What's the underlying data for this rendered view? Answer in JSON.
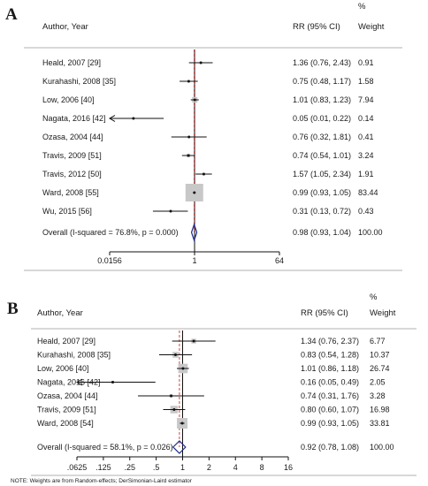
{
  "panels": [
    {
      "letter": "A",
      "header": {
        "author": "Author, Year",
        "rr": "RR (95% CI)",
        "pct": "%",
        "weight": "Weight"
      },
      "rows": [
        {
          "label": "Heald, 2007 [29]",
          "rr": 1.36,
          "lo": 0.76,
          "hi": 2.43,
          "rr_text": "1.36 (0.76, 2.43)",
          "weight": 0.91,
          "weight_text": "0.91",
          "arrow_left": false
        },
        {
          "label": "Kurahashi, 2008 [35]",
          "rr": 0.75,
          "lo": 0.48,
          "hi": 1.17,
          "rr_text": "0.75 (0.48, 1.17)",
          "weight": 1.58,
          "weight_text": "1.58",
          "arrow_left": false
        },
        {
          "label": "Low, 2006 [40]",
          "rr": 1.01,
          "lo": 0.83,
          "hi": 1.23,
          "rr_text": "1.01 (0.83, 1.23)",
          "weight": 7.94,
          "weight_text": "7.94",
          "arrow_left": false
        },
        {
          "label": "Nagata, 2016 [42]",
          "rr": 0.05,
          "lo": 0.01,
          "hi": 0.22,
          "rr_text": "0.05 (0.01, 0.22)",
          "weight": 0.14,
          "weight_text": "0.14",
          "arrow_left": true
        },
        {
          "label": "Ozasa, 2004 [44]",
          "rr": 0.76,
          "lo": 0.32,
          "hi": 1.81,
          "rr_text": "0.76 (0.32, 1.81)",
          "weight": 0.41,
          "weight_text": "0.41",
          "arrow_left": false
        },
        {
          "label": "Travis, 2009 [51]",
          "rr": 0.74,
          "lo": 0.54,
          "hi": 1.01,
          "rr_text": "0.74 (0.54, 1.01)",
          "weight": 3.24,
          "weight_text": "3.24",
          "arrow_left": false
        },
        {
          "label": "Travis, 2012 [50]",
          "rr": 1.57,
          "lo": 1.05,
          "hi": 2.34,
          "rr_text": "1.57 (1.05, 2.34)",
          "weight": 1.91,
          "weight_text": "1.91",
          "arrow_left": false
        },
        {
          "label": "Ward, 2008 [55]",
          "rr": 0.99,
          "lo": 0.93,
          "hi": 1.05,
          "rr_text": "0.99 (0.93, 1.05)",
          "weight": 83.44,
          "weight_text": "83.44",
          "arrow_left": false
        },
        {
          "label": "Wu, 2015 [56]",
          "rr": 0.31,
          "lo": 0.13,
          "hi": 0.72,
          "rr_text": "0.31 (0.13, 0.72)",
          "weight": 0.43,
          "weight_text": "0.43",
          "arrow_left": false
        }
      ],
      "overall": {
        "label": "Overall  (I-squared = 76.8%, p = 0.000)",
        "rr": 0.98,
        "lo": 0.93,
        "hi": 1.04,
        "rr_text": "0.98 (0.93, 1.04)",
        "weight_text": "100.00"
      },
      "axis": {
        "min": 0.0156,
        "max": 64,
        "ticks": [
          {
            "value": 0.0156,
            "label": "0.0156"
          },
          {
            "value": 1,
            "label": "1"
          },
          {
            "value": 64,
            "label": "64"
          }
        ]
      },
      "note": ""
    },
    {
      "letter": "B",
      "header": {
        "author": "Author, Year",
        "rr": "RR (95% CI)",
        "pct": "%",
        "weight": "Weight"
      },
      "rows": [
        {
          "label": "Heald, 2007 [29]",
          "rr": 1.34,
          "lo": 0.76,
          "hi": 2.37,
          "rr_text": "1.34 (0.76, 2.37)",
          "weight": 6.77,
          "weight_text": "6.77",
          "arrow_left": false
        },
        {
          "label": "Kurahashi, 2008 [35]",
          "rr": 0.83,
          "lo": 0.54,
          "hi": 1.28,
          "rr_text": "0.83 (0.54, 1.28)",
          "weight": 10.37,
          "weight_text": "10.37",
          "arrow_left": false
        },
        {
          "label": "Low, 2006 [40]",
          "rr": 1.01,
          "lo": 0.86,
          "hi": 1.18,
          "rr_text": "1.01 (0.86, 1.18)",
          "weight": 26.74,
          "weight_text": "26.74",
          "arrow_left": false
        },
        {
          "label": "Nagata, 2016 [42]",
          "rr": 0.16,
          "lo": 0.05,
          "hi": 0.49,
          "rr_text": "0.16 (0.05, 0.49)",
          "weight": 2.05,
          "weight_text": "2.05",
          "arrow_left": true
        },
        {
          "label": "Ozasa, 2004 [44]",
          "rr": 0.74,
          "lo": 0.31,
          "hi": 1.76,
          "rr_text": "0.74 (0.31, 1.76)",
          "weight": 3.28,
          "weight_text": "3.28",
          "arrow_left": false
        },
        {
          "label": "Travis, 2009 [51]",
          "rr": 0.8,
          "lo": 0.6,
          "hi": 1.07,
          "rr_text": "0.80 (0.60, 1.07)",
          "weight": 16.98,
          "weight_text": "16.98",
          "arrow_left": false
        },
        {
          "label": "Ward, 2008 [54]",
          "rr": 0.99,
          "lo": 0.93,
          "hi": 1.05,
          "rr_text": "0.99 (0.93, 1.05)",
          "weight": 33.81,
          "weight_text": "33.81",
          "arrow_left": false
        }
      ],
      "overall": {
        "label": "Overall  (I-squared = 58.1%, p = 0.026)",
        "rr": 0.92,
        "lo": 0.78,
        "hi": 1.08,
        "rr_text": "0.92 (0.78, 1.08)",
        "weight_text": "100.00"
      },
      "axis": {
        "min": 0.0625,
        "max": 16,
        "ticks": [
          {
            "value": 0.0625,
            "label": ".0625"
          },
          {
            "value": 0.125,
            "label": ".125"
          },
          {
            "value": 0.25,
            "label": ".25"
          },
          {
            "value": 0.5,
            "label": ".5"
          },
          {
            "value": 1,
            "label": "1"
          },
          {
            "value": 2,
            "label": "2"
          },
          {
            "value": 4,
            "label": "4"
          },
          {
            "value": 8,
            "label": "8"
          },
          {
            "value": 16,
            "label": "16"
          }
        ]
      },
      "note": "NOTE: Weights are from Random-effects; DerSimonian-Laird estimator"
    }
  ],
  "chart_data": [
    {
      "type": "forest",
      "xscale": "log",
      "xlim": [
        0.0156,
        64
      ],
      "reference_line": 1,
      "studies": [
        "Heald, 2007 [29]",
        "Kurahashi, 2008 [35]",
        "Low, 2006 [40]",
        "Nagata, 2016 [42]",
        "Ozasa, 2004 [44]",
        "Travis, 2009 [51]",
        "Travis, 2012 [50]",
        "Ward, 2008 [55]",
        "Wu, 2015 [56]"
      ],
      "rr": [
        1.36,
        0.75,
        1.01,
        0.05,
        0.76,
        0.74,
        1.57,
        0.99,
        0.31
      ],
      "ci_low": [
        0.76,
        0.48,
        0.83,
        0.01,
        0.32,
        0.54,
        1.05,
        0.93,
        0.13
      ],
      "ci_high": [
        2.43,
        1.17,
        1.23,
        0.22,
        1.81,
        1.01,
        2.34,
        1.05,
        0.72
      ],
      "weight_pct": [
        0.91,
        1.58,
        7.94,
        0.14,
        0.41,
        3.24,
        1.91,
        83.44,
        0.43
      ],
      "overall": {
        "rr": 0.98,
        "ci_low": 0.93,
        "ci_high": 1.04,
        "i_squared": "76.8%",
        "p": "0.000"
      }
    },
    {
      "type": "forest",
      "xscale": "log",
      "xlim": [
        0.0625,
        16
      ],
      "reference_line": 1,
      "studies": [
        "Heald, 2007 [29]",
        "Kurahashi, 2008 [35]",
        "Low, 2006 [40]",
        "Nagata, 2016 [42]",
        "Ozasa, 2004 [44]",
        "Travis, 2009 [51]",
        "Ward, 2008 [54]"
      ],
      "rr": [
        1.34,
        0.83,
        1.01,
        0.16,
        0.74,
        0.8,
        0.99
      ],
      "ci_low": [
        0.76,
        0.54,
        0.86,
        0.05,
        0.31,
        0.6,
        0.93
      ],
      "ci_high": [
        2.37,
        1.28,
        1.18,
        0.49,
        1.76,
        1.07,
        1.05
      ],
      "weight_pct": [
        6.77,
        10.37,
        26.74,
        2.05,
        3.28,
        16.98,
        33.81
      ],
      "overall": {
        "rr": 0.92,
        "ci_low": 0.78,
        "ci_high": 1.08,
        "i_squared": "58.1%",
        "p": "0.026"
      }
    }
  ]
}
